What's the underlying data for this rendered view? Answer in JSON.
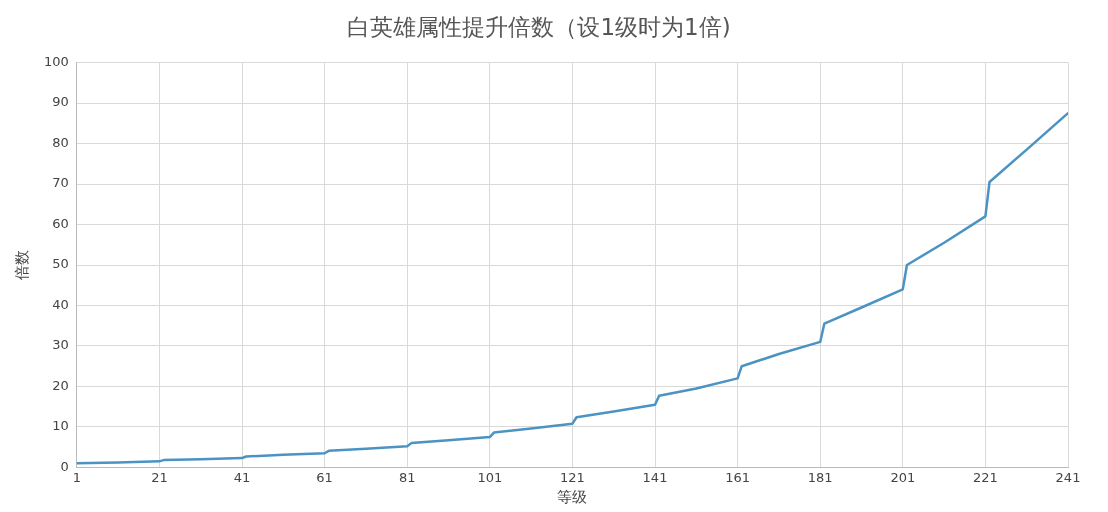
{
  "chart_data": {
    "type": "line",
    "title": "白英雄属性提升倍数（设1级时为1倍)",
    "xlabel": "等级",
    "ylabel": "倍数",
    "x": [
      1,
      11,
      21,
      22,
      31,
      41,
      42,
      51,
      61,
      62,
      71,
      81,
      82,
      91,
      101,
      102,
      111,
      121,
      122,
      131,
      141,
      142,
      151,
      161,
      162,
      171,
      181,
      182,
      191,
      201,
      202,
      211,
      221,
      222,
      231,
      241
    ],
    "series": [
      {
        "color": "#4a93c3",
        "values": [
          1,
          1.2,
          1.5,
          1.8,
          2,
          2.3,
          2.7,
          3.1,
          3.5,
          4.1,
          4.6,
          5.2,
          6,
          6.7,
          7.5,
          8.6,
          9.6,
          10.8,
          12.4,
          13.8,
          15.5,
          17.7,
          19.5,
          22,
          25,
          28,
          31,
          35.5,
          39.5,
          44,
          50,
          55.5,
          62,
          70.5,
          78.5,
          87.5
        ]
      }
    ],
    "xlim": [
      1,
      241
    ],
    "xticks": [
      1,
      21,
      41,
      61,
      81,
      101,
      121,
      141,
      161,
      181,
      201,
      221,
      241
    ],
    "ylim": [
      0,
      100
    ],
    "yticks": [
      0,
      10,
      20,
      30,
      40,
      50,
      60,
      70,
      80,
      90,
      100
    ],
    "grid": true,
    "legend": false,
    "marker": "none",
    "line_style": "solid"
  }
}
